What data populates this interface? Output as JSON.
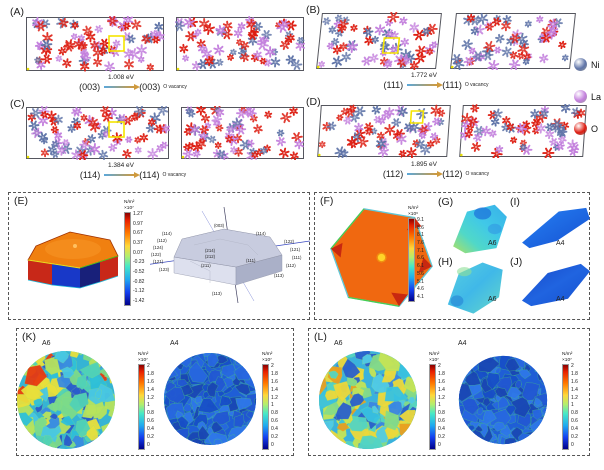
{
  "legend": {
    "items": [
      {
        "label": "Ni",
        "color": "#5f74a8"
      },
      {
        "label": "La",
        "color": "#c37fdd"
      },
      {
        "label": "O",
        "color": "#dd1c10"
      }
    ]
  },
  "highlight_color": "#f5e400",
  "arrow_colors": {
    "start": "#5aa8dc",
    "end": "#cf9a3e"
  },
  "panels": {
    "A": {
      "label": "(A)",
      "energy": "1.008 eV",
      "from": "(003)",
      "to": "(003)",
      "vacancy": "O vacancy"
    },
    "B": {
      "label": "(B)",
      "energy": "1.772 eV",
      "from": "(111)",
      "to": "(111)",
      "vacancy": "O vacancy"
    },
    "C": {
      "label": "(C)",
      "energy": "1.384 eV",
      "from": "(114)",
      "to": "(114)",
      "vacancy": "O vacancy"
    },
    "D": {
      "label": "(D)",
      "energy": "1.895 eV",
      "from": "(112)",
      "to": "(112)",
      "vacancy": "O vacancy"
    },
    "E": {
      "label": "(E)",
      "colorbar": {
        "title": "N/m²",
        "scale": "×10⁷",
        "ticks": [
          "1.27",
          "0.97",
          "0.67",
          "0.37",
          "0.07",
          "-0.23",
          "-0.52",
          "-0.82",
          "-1.12",
          "-1.42"
        ]
      },
      "facets": [
        "(114)",
        "(112)",
        "(124)",
        "(122)",
        "(121)",
        "(123)",
        "(003)",
        "(214)",
        "(212)",
        "(211)",
        "(111)",
        "(113)",
        "(122)",
        "(121)",
        "(111)",
        "(112)",
        "(114)",
        "(113)"
      ]
    },
    "F": {
      "label": "(F)",
      "colorbar": {
        "title": "N/m²",
        "scale": "×10⁶",
        "ticks": [
          "9.1",
          "8.6",
          "8.1",
          "7.6",
          "7.1",
          "6.6",
          "6.1",
          "5.6",
          "5.1",
          "4.6",
          "4.1"
        ]
      }
    },
    "G": {
      "label": "(G)",
      "tag": "A6"
    },
    "H": {
      "label": "(H)",
      "tag": "A6"
    },
    "I": {
      "label": "(I)",
      "tag": "A4"
    },
    "J": {
      "label": "(J)",
      "tag": "A4"
    },
    "K": {
      "label": "(K)",
      "maps": [
        {
          "tag": "A6",
          "base": "#35b4d4",
          "palette": [
            "#2fc0d8",
            "#52d2b6",
            "#7ddc8a",
            "#b8e35c",
            "#e8e03c",
            "#3a8ce0",
            "#2a5ccc",
            "#49c8e2"
          ],
          "hot": "#e83c10",
          "colorbar": {
            "title": "N/m²",
            "scale": "×10⁷",
            "ticks": [
              "2",
              "1.8",
              "1.6",
              "1.4",
              "1.2",
              "1",
              "0.8",
              "0.6",
              "0.4",
              "0.2",
              "0"
            ]
          }
        },
        {
          "tag": "A4",
          "base": "#1f5ed6",
          "palette": [
            "#1850c8",
            "#2868e0",
            "#1a47b4",
            "#2f78e8",
            "#2258d2"
          ],
          "stroke": "#46c382",
          "colorbar": {
            "title": "N/m²",
            "scale": "×10⁷",
            "ticks": [
              "2",
              "1.8",
              "1.6",
              "1.4",
              "1.2",
              "1",
              "0.8",
              "0.6",
              "0.4",
              "0.2",
              "0"
            ]
          }
        }
      ]
    },
    "L": {
      "label": "(L)",
      "maps": [
        {
          "tag": "A6",
          "base": "#3ab2dc",
          "palette": [
            "#38c2e0",
            "#54d4c2",
            "#86dc86",
            "#c4e456",
            "#ecd83a",
            "#3a86e2",
            "#2a60cc",
            "#52cce4"
          ],
          "hot": "#e8a020",
          "colorbar": {
            "title": "N/m²",
            "scale": "×10⁷",
            "ticks": [
              "2",
              "1.8",
              "1.6",
              "1.4",
              "1.2",
              "1",
              "0.8",
              "0.6",
              "0.4",
              "0.2",
              "0"
            ]
          }
        },
        {
          "tag": "A4",
          "base": "#1f5ed6",
          "palette": [
            "#1850c8",
            "#2868e0",
            "#1a47b4",
            "#2f78e8",
            "#2258d2"
          ],
          "stroke": "#46c382",
          "colorbar": {
            "title": "N/m²",
            "scale": "×10⁷",
            "ticks": [
              "2",
              "1.8",
              "1.6",
              "1.4",
              "1.2",
              "1",
              "0.8",
              "0.6",
              "0.4",
              "0.2",
              "0"
            ]
          }
        }
      ]
    }
  }
}
